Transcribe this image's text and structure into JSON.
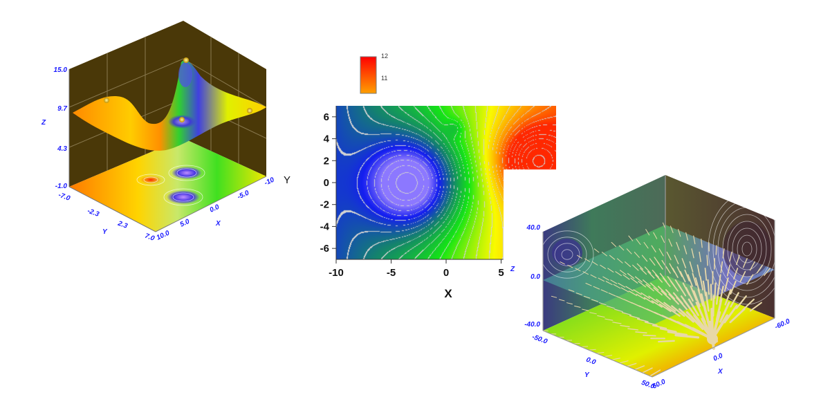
{
  "chart_data": [
    {
      "type": "surface",
      "description_of_axes": "3D surface with projected contour floor",
      "zlabel": "Z",
      "xlabel": "X",
      "ylabel": "Y",
      "extra_label": "Y",
      "z_ticks": [
        "15.0",
        "9.7",
        "4.3",
        "-1.0"
      ],
      "y_ticks": [
        "-7.0",
        "-2.3",
        "2.3",
        "7.0"
      ],
      "x_ticks": [
        "10.0",
        "5.0",
        "0.0",
        "-5.0",
        "-10"
      ],
      "zlim": [
        -1.0,
        15.0
      ],
      "ylim": [
        -7.0,
        7.0
      ],
      "xlim": [
        -10,
        10.0
      ],
      "colors": {
        "wall": "#4a3808",
        "low": "#4030e0",
        "mid": "#30e030",
        "high": "#ffee00",
        "peak": "#ff5a00"
      }
    },
    {
      "type": "heatmap",
      "xlabel": "X",
      "x_ticks": [
        "-10",
        "-5",
        "0",
        "5"
      ],
      "y_ticks": [
        "6",
        "4",
        "2",
        "0",
        "-2",
        "-4",
        "-6"
      ],
      "xlim": [
        -10,
        10
      ],
      "ylim": [
        -7,
        7
      ],
      "colorbar_ticks": [
        "12",
        "11"
      ],
      "features": [
        {
          "kind": "minimum",
          "x": -3,
          "y": 0
        },
        {
          "kind": "maximum",
          "x": 8,
          "y": 2
        },
        {
          "kind": "local-minimum",
          "x": 0.8,
          "y": 5
        }
      ]
    },
    {
      "type": "vector",
      "zlabel": "Z",
      "xlabel": "X",
      "ylabel": "Y",
      "z_ticks": [
        "40.0",
        "0.0",
        "-40.0"
      ],
      "y_ticks": [
        "-50.0",
        "0.0",
        "50.0"
      ],
      "x_ticks": [
        "60.0",
        "0.0",
        "-60.0"
      ],
      "zlim": [
        -40.0,
        40.0
      ],
      "ylim": [
        -50.0,
        50.0
      ],
      "xlim": [
        -60.0,
        60.0
      ],
      "arrow_color": "#e8d8a8"
    }
  ]
}
